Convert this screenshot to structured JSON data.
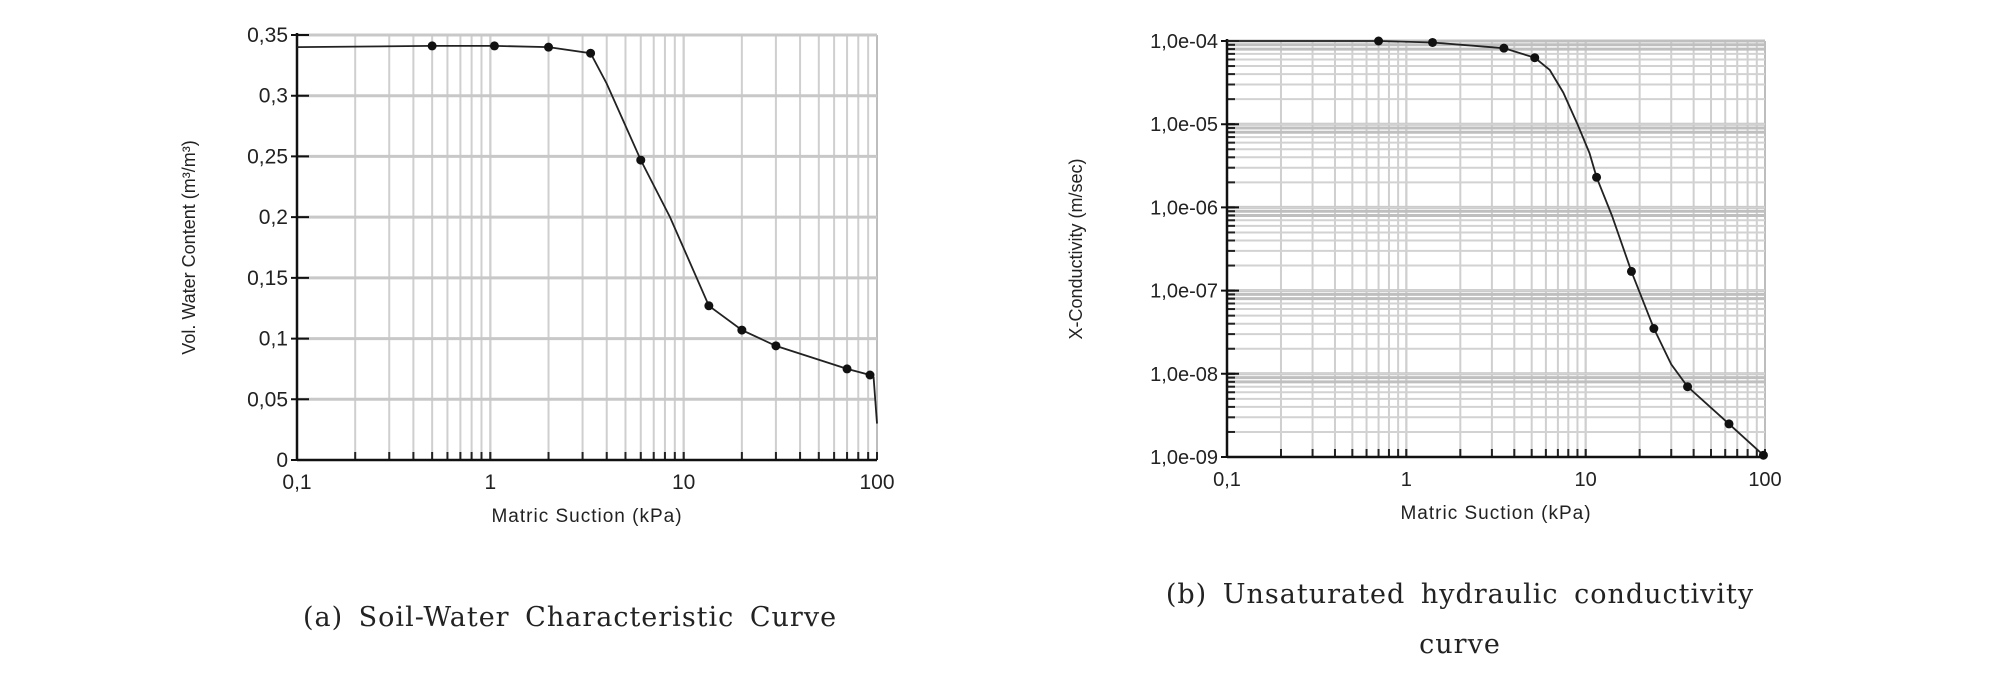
{
  "chart_data": [
    {
      "type": "line",
      "caption": "(a) Soil-Water Characteristic Curve",
      "xlabel": "Matric Suction (kPa)",
      "ylabel": "Vol. Water Content (m³/m³)",
      "xscale": "log",
      "yscale": "linear",
      "xlim": [
        0.1,
        100
      ],
      "ylim": [
        0,
        0.35
      ],
      "xticks": [
        {
          "v": 0.1,
          "label": "0,1"
        },
        {
          "v": 1,
          "label": "1"
        },
        {
          "v": 10,
          "label": "10"
        },
        {
          "v": 100,
          "label": "100"
        }
      ],
      "yticks": [
        {
          "v": 0,
          "label": "0"
        },
        {
          "v": 0.05,
          "label": "0,05"
        },
        {
          "v": 0.1,
          "label": "0,1"
        },
        {
          "v": 0.15,
          "label": "0,15"
        },
        {
          "v": 0.2,
          "label": "0,2"
        },
        {
          "v": 0.25,
          "label": "0,25"
        },
        {
          "v": 0.3,
          "label": "0,3"
        },
        {
          "v": 0.35,
          "label": "0,35"
        }
      ],
      "grid": true,
      "line": [
        [
          0.1,
          0.34
        ],
        [
          0.5,
          0.341
        ],
        [
          1.05,
          0.341
        ],
        [
          2,
          0.34
        ],
        [
          3.3,
          0.335
        ],
        [
          4,
          0.31
        ],
        [
          6,
          0.247
        ],
        [
          8.5,
          0.2
        ],
        [
          13.5,
          0.127
        ],
        [
          20,
          0.107
        ],
        [
          30,
          0.094
        ],
        [
          70,
          0.075
        ],
        [
          92,
          0.07
        ],
        [
          96,
          0.068
        ],
        [
          100,
          0.03
        ]
      ],
      "markers": [
        [
          0.5,
          0.341
        ],
        [
          1.05,
          0.341
        ],
        [
          2,
          0.34
        ],
        [
          3.3,
          0.335
        ],
        [
          6,
          0.247
        ],
        [
          13.5,
          0.127
        ],
        [
          20,
          0.107
        ],
        [
          30,
          0.094
        ],
        [
          70,
          0.075
        ],
        [
          92,
          0.07
        ]
      ]
    },
    {
      "type": "line",
      "caption": [
        "(b) Unsaturated hydraulic conductivity",
        "curve"
      ],
      "xlabel": "Matric Suction (kPa)",
      "ylabel": "X-Conductivity (m/sec)",
      "xscale": "log",
      "yscale": "log",
      "xlim": [
        0.1,
        100
      ],
      "ylim": [
        1e-09,
        0.0001
      ],
      "xticks": [
        {
          "v": 0.1,
          "label": "0,1"
        },
        {
          "v": 1,
          "label": "1"
        },
        {
          "v": 10,
          "label": "10"
        },
        {
          "v": 100,
          "label": "100"
        }
      ],
      "yticks": [
        {
          "v": 1e-09,
          "label": "1,0e-09"
        },
        {
          "v": 1e-08,
          "label": "1,0e-08"
        },
        {
          "v": 1e-07,
          "label": "1,0e-07"
        },
        {
          "v": 1e-06,
          "label": "1,0e-06"
        },
        {
          "v": 1e-05,
          "label": "1,0e-05"
        },
        {
          "v": 0.0001,
          "label": "1,0e-04"
        }
      ],
      "grid": true,
      "line": [
        [
          0.1,
          0.0001
        ],
        [
          0.7,
          0.0001
        ],
        [
          1.4,
          9.6e-05
        ],
        [
          3.5,
          8.2e-05
        ],
        [
          5.2,
          6.3e-05
        ],
        [
          6.3,
          4.5e-05
        ],
        [
          7.5,
          2.4e-05
        ],
        [
          9,
          1e-05
        ],
        [
          10.5,
          4.5e-06
        ],
        [
          11.5,
          2.3e-06
        ],
        [
          14,
          8e-07
        ],
        [
          18,
          1.7e-07
        ],
        [
          24,
          3.5e-08
        ],
        [
          30,
          1.3e-08
        ],
        [
          37,
          7e-09
        ],
        [
          63,
          2.5e-09
        ],
        [
          98,
          1.05e-09
        ]
      ],
      "markers": [
        [
          0.7,
          0.0001
        ],
        [
          1.4,
          9.6e-05
        ],
        [
          3.5,
          8.2e-05
        ],
        [
          5.2,
          6.3e-05
        ],
        [
          11.5,
          2.3e-06
        ],
        [
          18,
          1.7e-07
        ],
        [
          24,
          3.5e-08
        ],
        [
          37,
          7e-09
        ],
        [
          63,
          2.5e-09
        ],
        [
          98,
          1.05e-09
        ]
      ]
    }
  ]
}
